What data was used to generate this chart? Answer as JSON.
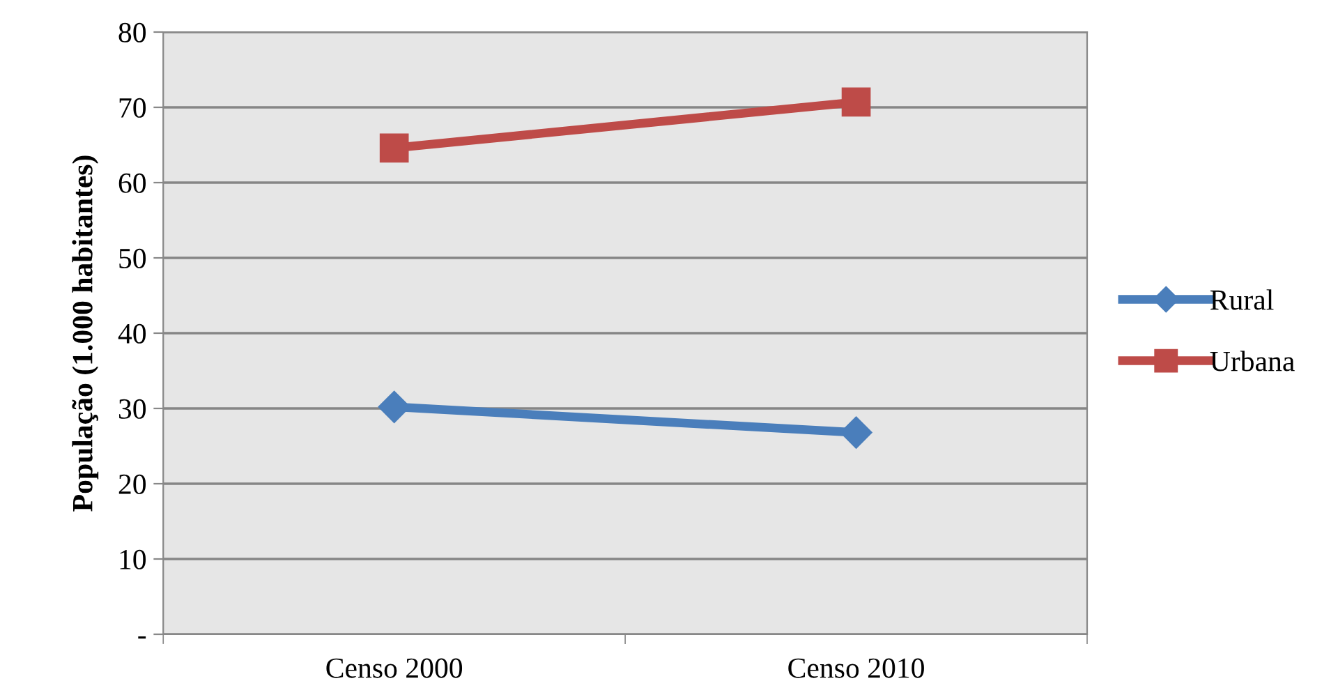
{
  "chart_data": {
    "type": "line",
    "ylabel": "População (1.000 habitantes)",
    "categories": [
      "Censo 2000",
      "Censo 2010"
    ],
    "series": [
      {
        "name": "Rural",
        "color": "#4a7ebb",
        "values": [
          30.2,
          26.8
        ],
        "marker": "diamond"
      },
      {
        "name": "Urbana",
        "color": "#be4b48",
        "values": [
          64.6,
          70.7
        ],
        "marker": "square"
      }
    ],
    "ylim": [
      0,
      80
    ],
    "yticks": [
      {
        "value": 0,
        "label": "-"
      },
      10,
      20,
      30,
      40,
      50,
      60,
      70,
      80
    ],
    "grid": "y",
    "legend": "right",
    "line_style": "solid"
  }
}
